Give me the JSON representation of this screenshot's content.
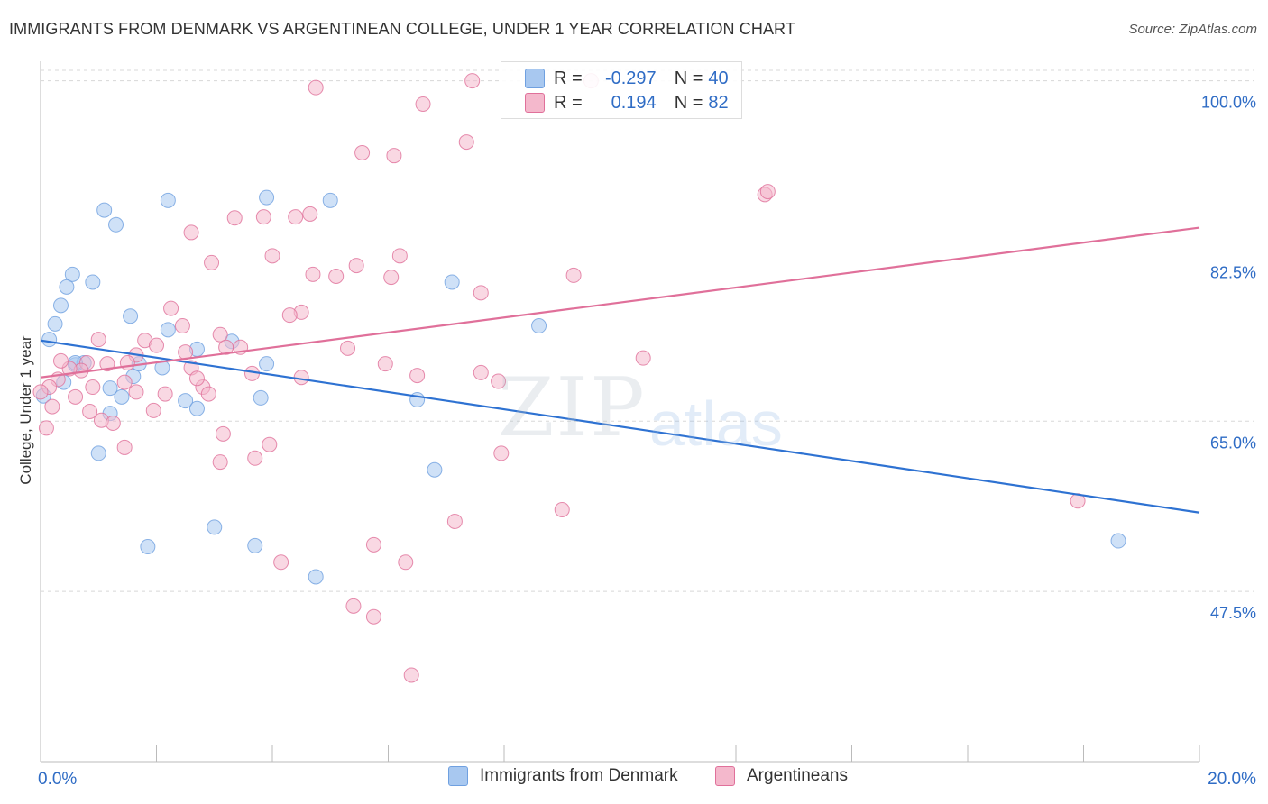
{
  "header": {
    "title": "IMMIGRANTS FROM DENMARK VS ARGENTINEAN COLLEGE, UNDER 1 YEAR CORRELATION CHART",
    "source": "Source: ZipAtlas.com"
  },
  "watermark": {
    "part1": "ZIP",
    "part2": "atlas"
  },
  "legend": {
    "rows": [
      {
        "r_label": "R = ",
        "r_value": "-0.297",
        "n_label": "N = ",
        "n_value": "40",
        "color": "#a8c8f0"
      },
      {
        "r_label": "R = ",
        "r_value": "0.194",
        "n_label": "N = ",
        "n_value": "82",
        "color": "#f4b8cc"
      }
    ]
  },
  "bottom_legend": {
    "items": [
      {
        "label": "Immigrants from Denmark",
        "color": "#a8c8f0"
      },
      {
        "label": "Argentineans",
        "color": "#f4b8cc"
      }
    ]
  },
  "chart_data": {
    "type": "scatter",
    "title": "IMMIGRANTS FROM DENMARK VS ARGENTINEAN COLLEGE, UNDER 1 YEAR CORRELATION CHART",
    "xlabel": "",
    "ylabel": "College, Under 1 year",
    "xlim": [
      0,
      20
    ],
    "ylim": [
      30,
      102
    ],
    "x_tick_labels": [
      "0.0%",
      "20.0%"
    ],
    "y_ticks": [
      47.5,
      65.0,
      82.5,
      100.0
    ],
    "y_tick_labels": [
      "47.5%",
      "65.0%",
      "82.5%",
      "100.0%"
    ],
    "series": [
      {
        "name": "Immigrants from Denmark",
        "color": "#6fa0e0",
        "fill": "#a8c8f0",
        "trend": {
          "x": [
            0,
            20
          ],
          "y": [
            73.3,
            55.6
          ]
        },
        "points": [
          {
            "x": 0.15,
            "y": 73.4
          },
          {
            "x": 0.25,
            "y": 75.0
          },
          {
            "x": 0.35,
            "y": 76.9
          },
          {
            "x": 0.45,
            "y": 78.8
          },
          {
            "x": 0.55,
            "y": 80.1
          },
          {
            "x": 0.9,
            "y": 79.3
          },
          {
            "x": 1.1,
            "y": 86.7
          },
          {
            "x": 1.3,
            "y": 85.2
          },
          {
            "x": 1.55,
            "y": 75.8
          },
          {
            "x": 2.2,
            "y": 87.7
          },
          {
            "x": 3.9,
            "y": 88.0
          },
          {
            "x": 5.0,
            "y": 87.7
          },
          {
            "x": 7.1,
            "y": 79.3
          },
          {
            "x": 8.6,
            "y": 74.8
          },
          {
            "x": 2.2,
            "y": 74.4
          },
          {
            "x": 2.7,
            "y": 72.4
          },
          {
            "x": 3.3,
            "y": 73.2
          },
          {
            "x": 0.6,
            "y": 70.8
          },
          {
            "x": 0.75,
            "y": 71.0
          },
          {
            "x": 1.2,
            "y": 68.4
          },
          {
            "x": 1.4,
            "y": 67.5
          },
          {
            "x": 1.6,
            "y": 69.6
          },
          {
            "x": 1.7,
            "y": 70.9
          },
          {
            "x": 2.1,
            "y": 70.5
          },
          {
            "x": 2.5,
            "y": 67.1
          },
          {
            "x": 2.7,
            "y": 66.3
          },
          {
            "x": 3.9,
            "y": 70.9
          },
          {
            "x": 3.8,
            "y": 67.4
          },
          {
            "x": 6.5,
            "y": 67.2
          },
          {
            "x": 1.2,
            "y": 65.8
          },
          {
            "x": 1.0,
            "y": 61.7
          },
          {
            "x": 6.8,
            "y": 60.0
          },
          {
            "x": 3.0,
            "y": 54.1
          },
          {
            "x": 3.7,
            "y": 52.2
          },
          {
            "x": 1.85,
            "y": 52.1
          },
          {
            "x": 4.75,
            "y": 49.0
          },
          {
            "x": 18.6,
            "y": 52.7
          },
          {
            "x": 0.05,
            "y": 67.6
          },
          {
            "x": 0.4,
            "y": 69.0
          },
          {
            "x": 0.6,
            "y": 71.0
          }
        ]
      },
      {
        "name": "Argentineans",
        "color": "#e0709a",
        "fill": "#f4b8cc",
        "trend": {
          "x": [
            0,
            20
          ],
          "y": [
            69.5,
            84.9
          ]
        },
        "points": [
          {
            "x": 7.45,
            "y": 100.0
          },
          {
            "x": 9.5,
            "y": 100.0
          },
          {
            "x": 4.75,
            "y": 99.3
          },
          {
            "x": 6.6,
            "y": 97.6
          },
          {
            "x": 7.35,
            "y": 93.7
          },
          {
            "x": 5.55,
            "y": 92.6
          },
          {
            "x": 6.1,
            "y": 92.3
          },
          {
            "x": 12.5,
            "y": 88.3
          },
          {
            "x": 12.55,
            "y": 88.6
          },
          {
            "x": 2.6,
            "y": 84.4
          },
          {
            "x": 3.35,
            "y": 85.9
          },
          {
            "x": 3.85,
            "y": 86.0
          },
          {
            "x": 4.4,
            "y": 86.0
          },
          {
            "x": 4.65,
            "y": 86.3
          },
          {
            "x": 4.0,
            "y": 82.0
          },
          {
            "x": 6.2,
            "y": 82.0
          },
          {
            "x": 2.95,
            "y": 81.3
          },
          {
            "x": 5.45,
            "y": 81.0
          },
          {
            "x": 4.7,
            "y": 80.1
          },
          {
            "x": 5.1,
            "y": 79.9
          },
          {
            "x": 6.05,
            "y": 79.8
          },
          {
            "x": 9.2,
            "y": 80.0
          },
          {
            "x": 7.6,
            "y": 78.2
          },
          {
            "x": 4.5,
            "y": 76.2
          },
          {
            "x": 4.3,
            "y": 75.9
          },
          {
            "x": 2.25,
            "y": 76.6
          },
          {
            "x": 2.45,
            "y": 74.8
          },
          {
            "x": 1.0,
            "y": 73.4
          },
          {
            "x": 1.8,
            "y": 73.3
          },
          {
            "x": 3.1,
            "y": 73.9
          },
          {
            "x": 3.45,
            "y": 72.6
          },
          {
            "x": 5.3,
            "y": 72.5
          },
          {
            "x": 2.0,
            "y": 72.8
          },
          {
            "x": 2.5,
            "y": 72.1
          },
          {
            "x": 1.65,
            "y": 71.8
          },
          {
            "x": 10.4,
            "y": 71.5
          },
          {
            "x": 0.8,
            "y": 71.0
          },
          {
            "x": 1.15,
            "y": 70.9
          },
          {
            "x": 1.5,
            "y": 71.0
          },
          {
            "x": 2.6,
            "y": 70.5
          },
          {
            "x": 5.95,
            "y": 70.9
          },
          {
            "x": 0.7,
            "y": 70.2
          },
          {
            "x": 0.5,
            "y": 70.4
          },
          {
            "x": 0.3,
            "y": 69.3
          },
          {
            "x": 3.65,
            "y": 69.9
          },
          {
            "x": 4.5,
            "y": 69.5
          },
          {
            "x": 6.5,
            "y": 69.7
          },
          {
            "x": 7.6,
            "y": 70.0
          },
          {
            "x": 7.9,
            "y": 69.1
          },
          {
            "x": 0.15,
            "y": 68.5
          },
          {
            "x": 0.9,
            "y": 68.5
          },
          {
            "x": 1.65,
            "y": 68.0
          },
          {
            "x": 2.15,
            "y": 67.8
          },
          {
            "x": 2.8,
            "y": 68.5
          },
          {
            "x": 2.9,
            "y": 67.8
          },
          {
            "x": 0.6,
            "y": 67.5
          },
          {
            "x": 0.2,
            "y": 66.5
          },
          {
            "x": 1.05,
            "y": 65.1
          },
          {
            "x": 1.25,
            "y": 64.8
          },
          {
            "x": 3.15,
            "y": 63.7
          },
          {
            "x": 3.95,
            "y": 62.6
          },
          {
            "x": 1.45,
            "y": 62.3
          },
          {
            "x": 7.95,
            "y": 61.7
          },
          {
            "x": 3.7,
            "y": 61.2
          },
          {
            "x": 3.1,
            "y": 60.8
          },
          {
            "x": 0.1,
            "y": 64.3
          },
          {
            "x": 17.9,
            "y": 56.8
          },
          {
            "x": 9.0,
            "y": 55.9
          },
          {
            "x": 7.15,
            "y": 54.7
          },
          {
            "x": 5.75,
            "y": 52.3
          },
          {
            "x": 6.3,
            "y": 50.5
          },
          {
            "x": 4.15,
            "y": 50.5
          },
          {
            "x": 5.4,
            "y": 46.0
          },
          {
            "x": 5.75,
            "y": 44.9
          },
          {
            "x": 6.4,
            "y": 38.9
          },
          {
            "x": 0.0,
            "y": 68.0
          },
          {
            "x": 0.35,
            "y": 71.2
          },
          {
            "x": 1.95,
            "y": 66.1
          },
          {
            "x": 3.2,
            "y": 72.6
          },
          {
            "x": 2.7,
            "y": 69.4
          },
          {
            "x": 1.45,
            "y": 69.0
          },
          {
            "x": 0.85,
            "y": 66.0
          }
        ]
      }
    ]
  }
}
